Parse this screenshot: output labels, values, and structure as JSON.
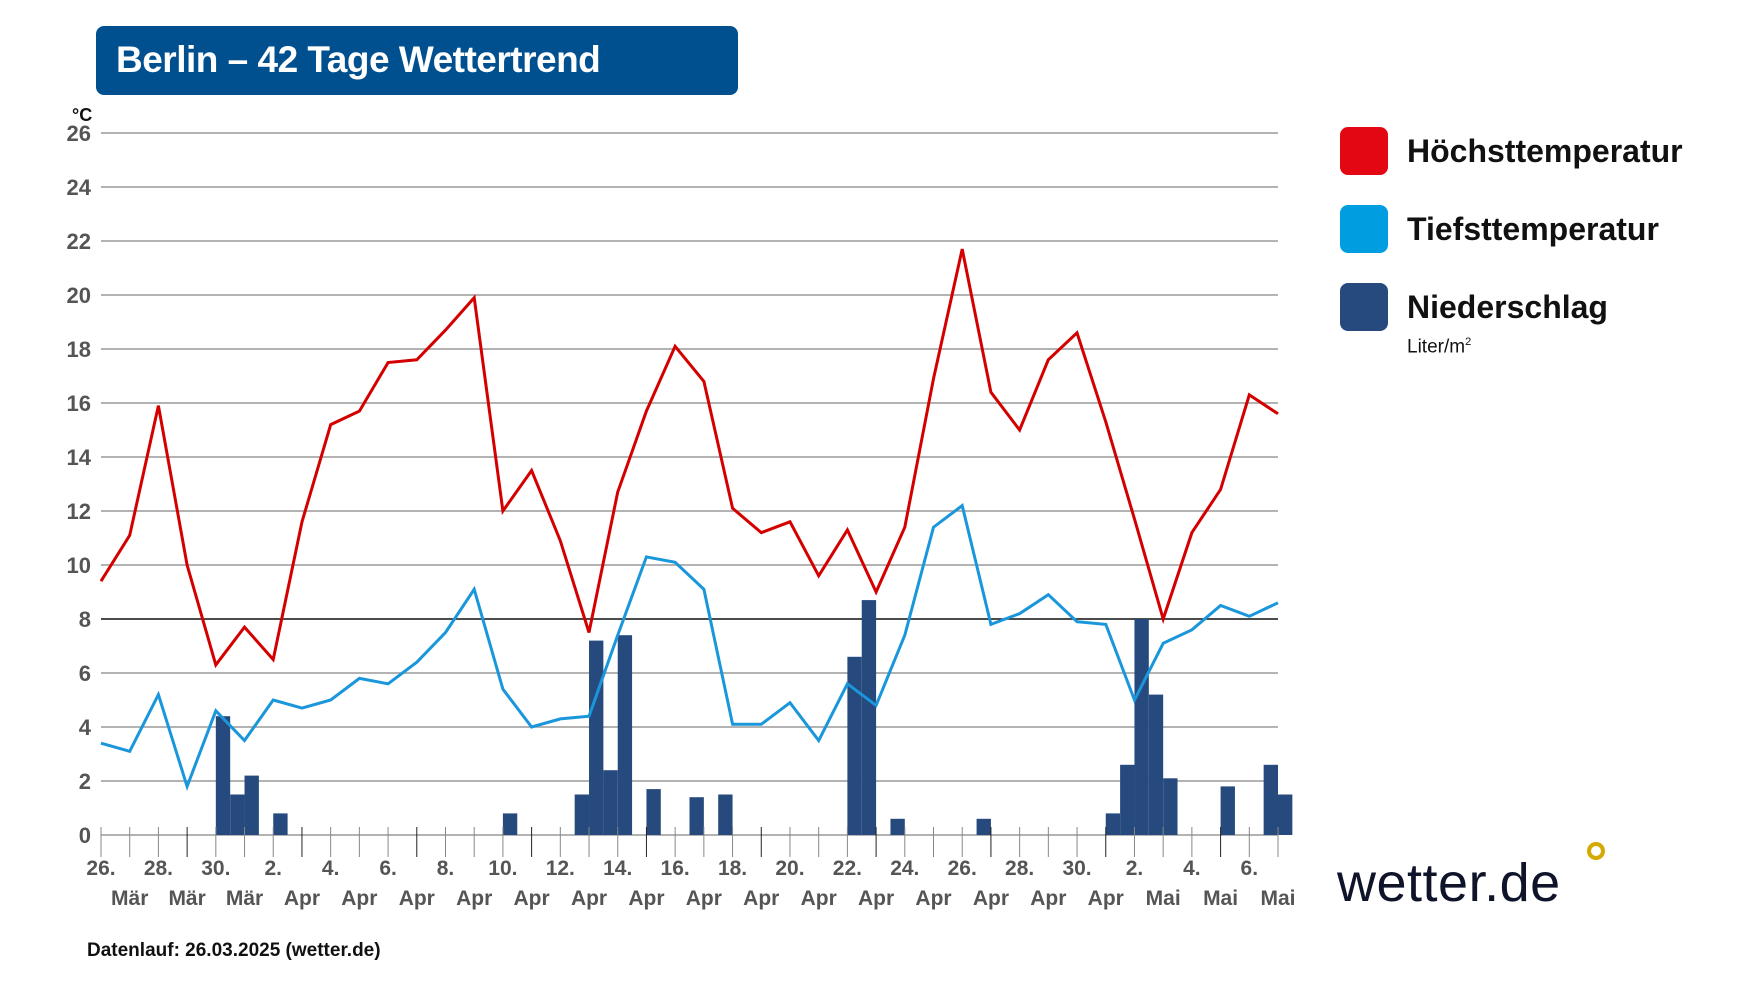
{
  "title": "Berlin – 42 Tage Wettertrend",
  "footer": "Datenlauf: 26.03.2025 (wetter.de)",
  "logo": "wetter.de",
  "legend": [
    {
      "label": "Höchsttemperatur",
      "color": "#e30613"
    },
    {
      "label": "Tiefsttemperatur",
      "color": "#009de0"
    },
    {
      "label": "Niederschlag",
      "color": "#264a7e",
      "unit": "Liter/m",
      "unit_sup": "2"
    }
  ],
  "chart_data": {
    "type": "line",
    "ylabel": "°C",
    "ylim": [
      0,
      26
    ],
    "yticks": [
      0,
      2,
      4,
      6,
      8,
      10,
      12,
      14,
      16,
      18,
      20,
      22,
      24,
      26
    ],
    "grid": true,
    "legend_position": "right",
    "xtick_labels": [
      [
        "26.",
        "Mär"
      ],
      [
        "28.",
        "Mär"
      ],
      [
        "30.",
        "Mär"
      ],
      [
        "2.",
        "Apr"
      ],
      [
        "4.",
        "Apr"
      ],
      [
        "6.",
        "Apr"
      ],
      [
        "8.",
        "Apr"
      ],
      [
        "10.",
        "Apr"
      ],
      [
        "12.",
        "Apr"
      ],
      [
        "14.",
        "Apr"
      ],
      [
        "16.",
        "Apr"
      ],
      [
        "18.",
        "Apr"
      ],
      [
        "20.",
        "Apr"
      ],
      [
        "22.",
        "Apr"
      ],
      [
        "24.",
        "Apr"
      ],
      [
        "26.",
        "Apr"
      ],
      [
        "28.",
        "Apr"
      ],
      [
        "30.",
        "Apr"
      ],
      [
        "2.",
        "Mai"
      ],
      [
        "4.",
        "Mai"
      ],
      [
        "6.",
        "Mai"
      ]
    ],
    "series": [
      {
        "name": "Höchsttemperatur",
        "color": "#d40000",
        "values": [
          9.4,
          11.1,
          15.9,
          10.0,
          6.3,
          7.7,
          6.5,
          11.6,
          15.2,
          15.7,
          17.5,
          17.6,
          18.7,
          19.9,
          12.0,
          13.5,
          10.9,
          7.5,
          12.7,
          15.7,
          18.1,
          16.8,
          12.1,
          11.2,
          11.6,
          9.6,
          11.3,
          9.0,
          11.4,
          16.9,
          21.7,
          16.4,
          15.0,
          17.6,
          18.6,
          15.3,
          11.7,
          8.0,
          11.2,
          12.8,
          16.3,
          15.6
        ]
      },
      {
        "name": "Tiefsttemperatur",
        "color": "#1a96db",
        "values": [
          3.4,
          3.1,
          5.2,
          1.8,
          4.6,
          3.5,
          5.0,
          4.7,
          5.0,
          5.8,
          5.6,
          6.4,
          7.5,
          9.1,
          5.4,
          4.0,
          4.3,
          4.4,
          7.4,
          10.3,
          10.1,
          9.1,
          4.1,
          4.1,
          4.9,
          3.5,
          5.6,
          4.8,
          7.4,
          11.4,
          12.2,
          7.8,
          8.2,
          8.9,
          7.9,
          7.8,
          5.0,
          7.1,
          7.6,
          8.5,
          8.1,
          8.6
        ]
      }
    ],
    "bars": {
      "name": "Niederschlag",
      "unit": "Liter/m²",
      "color": "#264a7e",
      "resolution": "half-day",
      "values": [
        0,
        0,
        0,
        0,
        0,
        0,
        0,
        0,
        4.4,
        1.5,
        2.2,
        0,
        0.8,
        0,
        0,
        0,
        0,
        0,
        0,
        0,
        0,
        0,
        0,
        0,
        0,
        0,
        0,
        0,
        0.8,
        0,
        0,
        0,
        0,
        1.5,
        7.2,
        2.4,
        7.4,
        0,
        1.7,
        0,
        0,
        1.4,
        0,
        1.5,
        0,
        0,
        0,
        0,
        0,
        0,
        0,
        0,
        6.6,
        8.7,
        0,
        0.6,
        0,
        0,
        0,
        0,
        0,
        0.6,
        0,
        0,
        0,
        0,
        0,
        0,
        0,
        0,
        0.8,
        2.6,
        8.0,
        5.2,
        2.1,
        0,
        0,
        0,
        1.8,
        0,
        0,
        2.6,
        1.5,
        0
      ]
    }
  }
}
